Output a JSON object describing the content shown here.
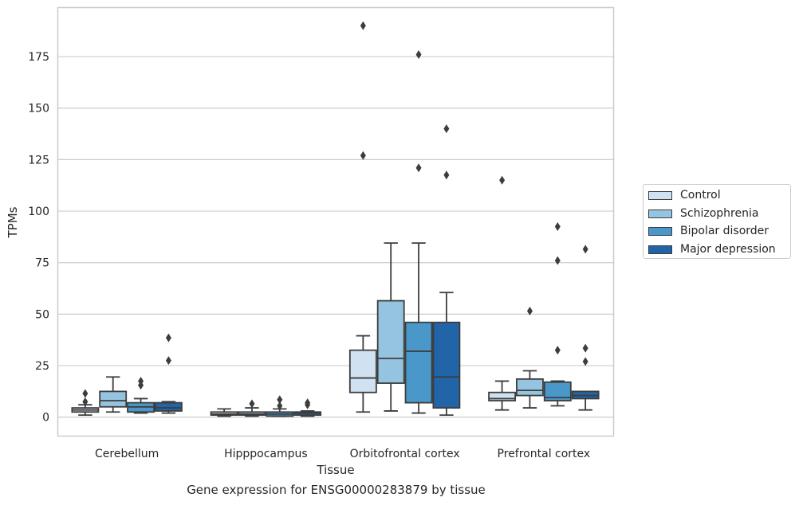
{
  "chart_data": {
    "type": "box",
    "title": "",
    "caption": "Gene expression for ENSG00000283879 by tissue",
    "xlabel": "Tissue",
    "ylabel": "TPMs",
    "ylim": [
      -9,
      199
    ],
    "yticks": [
      0,
      25,
      50,
      75,
      100,
      125,
      150,
      175
    ],
    "grid": true,
    "legend_position": "right",
    "categories": [
      "Cerebellum",
      "Hipppocampus",
      "Orbitofrontal cortex",
      "Prefrontal cortex"
    ],
    "series": [
      {
        "name": "Control",
        "color": "#d0e1f2",
        "boxes": [
          {
            "whisker_low": 1,
            "q1": 2.5,
            "median": 3.5,
            "q3": 4.5,
            "whisker_high": 6,
            "outliers": [
              7.5,
              11.5
            ]
          },
          {
            "whisker_low": 0.5,
            "q1": 1,
            "median": 1.5,
            "q3": 2.5,
            "whisker_high": 4,
            "outliers": []
          },
          {
            "whisker_low": 2.5,
            "q1": 12,
            "median": 19,
            "q3": 32.5,
            "whisker_high": 39.5,
            "outliers": [
              127,
              190
            ]
          },
          {
            "whisker_low": 3.5,
            "q1": 8,
            "median": 9,
            "q3": 12,
            "whisker_high": 17.5,
            "outliers": [
              115
            ]
          }
        ]
      },
      {
        "name": "Schizophrenia",
        "color": "#94c4df",
        "boxes": [
          {
            "whisker_low": 2.5,
            "q1": 5,
            "median": 8,
            "q3": 12.5,
            "whisker_high": 19.5,
            "outliers": []
          },
          {
            "whisker_low": 0.5,
            "q1": 1,
            "median": 1.5,
            "q3": 2.5,
            "whisker_high": 4.5,
            "outliers": [
              6.5
            ]
          },
          {
            "whisker_low": 3,
            "q1": 16.5,
            "median": 28.5,
            "q3": 56.5,
            "whisker_high": 84.5,
            "outliers": []
          },
          {
            "whisker_low": 4.5,
            "q1": 10.5,
            "median": 13,
            "q3": 18.5,
            "whisker_high": 22.5,
            "outliers": [
              51.5
            ]
          }
        ]
      },
      {
        "name": "Bipolar disorder",
        "color": "#4a98c9",
        "boxes": [
          {
            "whisker_low": 2,
            "q1": 2.5,
            "median": 5,
            "q3": 7,
            "whisker_high": 9,
            "outliers": [
              15.5,
              17.5
            ]
          },
          {
            "whisker_low": 0.5,
            "q1": 0.5,
            "median": 1.5,
            "q3": 2.5,
            "whisker_high": 4,
            "outliers": [
              5.5,
              8.5
            ]
          },
          {
            "whisker_low": 2,
            "q1": 7,
            "median": 32,
            "q3": 46,
            "whisker_high": 84.5,
            "outliers": [
              121,
              176
            ]
          },
          {
            "whisker_low": 5.5,
            "q1": 8,
            "median": 9.5,
            "q3": 17,
            "whisker_high": 17.5,
            "outliers": [
              32.5,
              76,
              92.5
            ]
          }
        ]
      },
      {
        "name": "Major depression",
        "color": "#2264a8",
        "boxes": [
          {
            "whisker_low": 2,
            "q1": 3,
            "median": 4.5,
            "q3": 7,
            "whisker_high": 7.5,
            "outliers": [
              27.5,
              38.5
            ]
          },
          {
            "whisker_low": 0.5,
            "q1": 1,
            "median": 2,
            "q3": 2.5,
            "whisker_high": 3,
            "outliers": [
              6,
              7
            ]
          },
          {
            "whisker_low": 1,
            "q1": 4.5,
            "median": 19.5,
            "q3": 46,
            "whisker_high": 60.5,
            "outliers": [
              117.5,
              140
            ]
          },
          {
            "whisker_low": 3.5,
            "q1": 9,
            "median": 10.5,
            "q3": 12.5,
            "whisker_high": 12.5,
            "outliers": [
              27,
              33.5,
              81.5
            ]
          }
        ]
      }
    ]
  }
}
